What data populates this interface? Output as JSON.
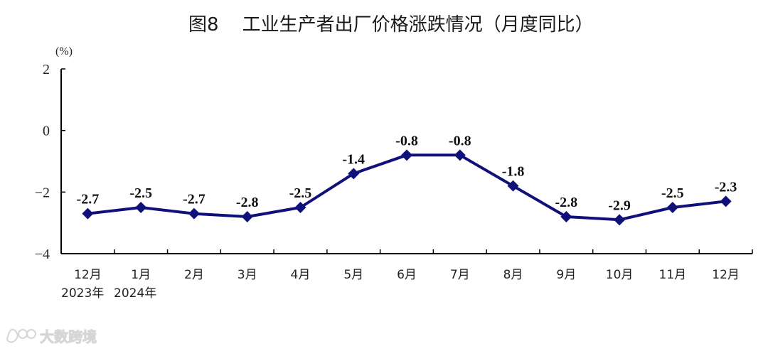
{
  "chart_data": {
    "type": "line",
    "title": "图8    工业生产者出厂价格涨跌情况（月度同比）",
    "unit_label": "(%)",
    "categories": [
      "12月",
      "1月",
      "2月",
      "3月",
      "4月",
      "5月",
      "6月",
      "7月",
      "8月",
      "9月",
      "10月",
      "11月",
      "12月"
    ],
    "year_labels": [
      "2023年",
      "2024年"
    ],
    "values": [
      -2.7,
      -2.5,
      -2.7,
      -2.8,
      -2.5,
      -1.4,
      -0.8,
      -0.8,
      -1.8,
      -2.8,
      -2.9,
      -2.5,
      -2.3
    ],
    "value_labels": [
      "-2.7",
      "-2.5",
      "-2.7",
      "-2.8",
      "-2.5",
      "-1.4",
      "-0.8",
      "-0.8",
      "-1.8",
      "-2.8",
      "-2.9",
      "-2.5",
      "-2.3"
    ],
    "ylim": [
      -4,
      2
    ],
    "yticks": [
      2,
      0,
      -2,
      -4
    ],
    "ytick_labels": [
      "2",
      "0",
      "−2",
      "−4"
    ],
    "line_color": "#10107a",
    "grid": false,
    "legend": "none"
  },
  "watermark": {
    "text": "大数跨境",
    "icon": "logo-glyph-icon"
  }
}
